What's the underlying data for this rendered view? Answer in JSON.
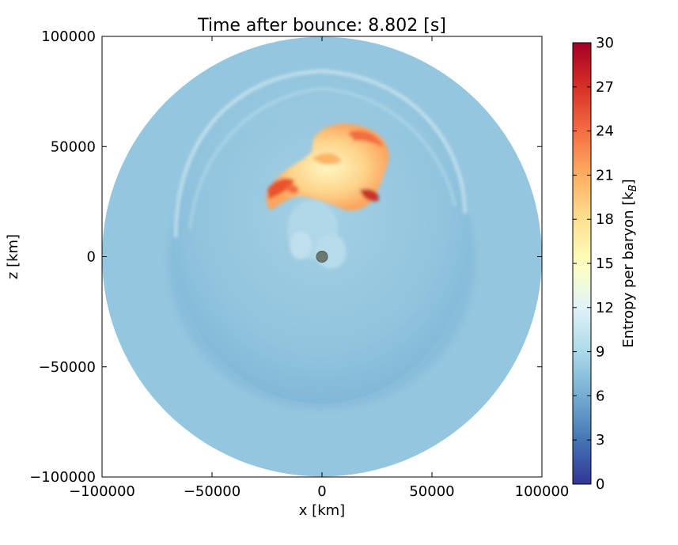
{
  "chart_data": {
    "type": "heatmap",
    "title": "Time after bounce: 8.802 [s]",
    "xlabel": "x [km]",
    "ylabel": "z [km]",
    "xlim": [
      -100000,
      100000
    ],
    "ylim": [
      -100000,
      100000
    ],
    "x_ticks": [
      -100000,
      -50000,
      0,
      50000,
      100000
    ],
    "y_ticks": [
      -100000,
      -50000,
      0,
      50000,
      100000
    ],
    "x_tick_labels": [
      "−100000",
      "−50000",
      "0",
      "50000",
      "100000"
    ],
    "y_tick_labels": [
      "−100000",
      "−50000",
      "0",
      "50000",
      "100000"
    ],
    "colorbar": {
      "label": "Entropy per baryon [k_B]",
      "label_main": "Entropy per baryon [k",
      "label_sub": "B",
      "label_end": "]",
      "colormap": "RdYlBu_r",
      "range": [
        0,
        30
      ],
      "ticks": [
        0,
        3,
        6,
        9,
        12,
        15,
        18,
        21,
        24,
        27,
        30
      ],
      "tick_labels": [
        "0",
        "3",
        "6",
        "9",
        "12",
        "15",
        "18",
        "21",
        "24",
        "27",
        "30"
      ]
    },
    "domain": {
      "shape": "disk",
      "radius_km": 100000,
      "background_entropy": 8
    },
    "features": [
      {
        "name": "outer-shock-shell",
        "center_km": [
          0,
          0
        ],
        "radius_km": 68000,
        "entropy": 7
      },
      {
        "name": "high-entropy-plume",
        "center_km": [
          10000,
          45000
        ],
        "entropy_range": [
          14,
          27
        ]
      },
      {
        "name": "central-neutron-star",
        "center_km": [
          0,
          0
        ],
        "radius_km": 2500,
        "color": "#6a7a72"
      }
    ]
  }
}
